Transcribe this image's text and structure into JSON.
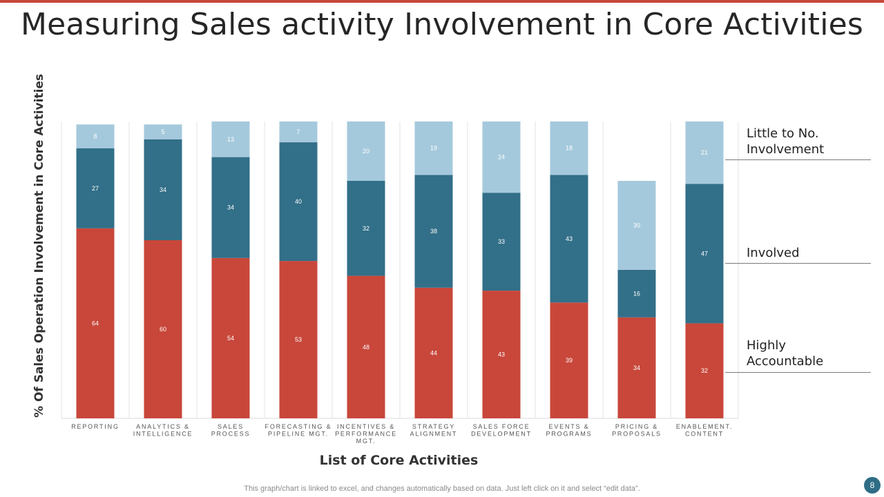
{
  "title": "Measuring Sales activity Involvement in Core Activities",
  "footnote": "This graph/chart is linked to excel,  and changes automatically based on data. Just left click on it and select “edit data”.",
  "page_number": "8",
  "colors": {
    "highly_accountable": "#c8473a",
    "involved": "#326f88",
    "little_to_no": "#a5c9dc",
    "accent": "#c8473a"
  },
  "chart_data": {
    "type": "bar",
    "stacked": true,
    "title": "Measuring Sales activity Involvement in Core Activities",
    "xlabel": "List of Core Activities",
    "ylabel": "% Of Sales Operation Involvement in Core Activities",
    "ylim": [
      0,
      100
    ],
    "grid": false,
    "legend_position": "right",
    "categories": [
      "REPORTING",
      "ANALYTICS & INTELLIGENCE",
      "SALES PROCESS",
      "FORECASTING & PIPELINE MGT.",
      "INCENTIVES & PERFORMANCE MGT.",
      "STRATEGY ALIGNMENT",
      "SALES FORCE DEVELOPMENT",
      "EVENTS & PROGRAMS",
      "PRICING & PROPOSALS",
      "ENABLEMENT. CONTENT"
    ],
    "category_label_lines": [
      [
        "REPORTING"
      ],
      [
        "ANALYTICS &",
        "INTELLIGENCE"
      ],
      [
        "SALES",
        "PROCESS"
      ],
      [
        "FORECASTING &",
        "PIPELINE MGT."
      ],
      [
        "INCENTIVES &",
        "PERFORMANCE",
        "MGT."
      ],
      [
        "STRATEGY",
        "ALIGNMENT"
      ],
      [
        "SALES FORCE",
        "DEVELOPMENT"
      ],
      [
        "EVENTS &",
        "PROGRAMS"
      ],
      [
        "PRICING &",
        "PROPOSALS"
      ],
      [
        "ENABLEMENT.",
        "CONTENT"
      ]
    ],
    "series": [
      {
        "name": "Highly Accountable",
        "values": [
          64,
          60,
          54,
          53,
          48,
          44,
          43,
          39,
          34,
          32
        ]
      },
      {
        "name": "Involved",
        "values": [
          27,
          34,
          34,
          40,
          32,
          38,
          33,
          43,
          16,
          47
        ]
      },
      {
        "name": "Little to No. Involvement",
        "values": [
          8,
          5,
          13,
          7,
          20,
          19,
          24,
          18,
          30,
          21
        ]
      }
    ],
    "legend": [
      {
        "label": "Little to No.\nInvolvement"
      },
      {
        "label": "Involved"
      },
      {
        "label": "Highly\nAccountable"
      }
    ]
  }
}
